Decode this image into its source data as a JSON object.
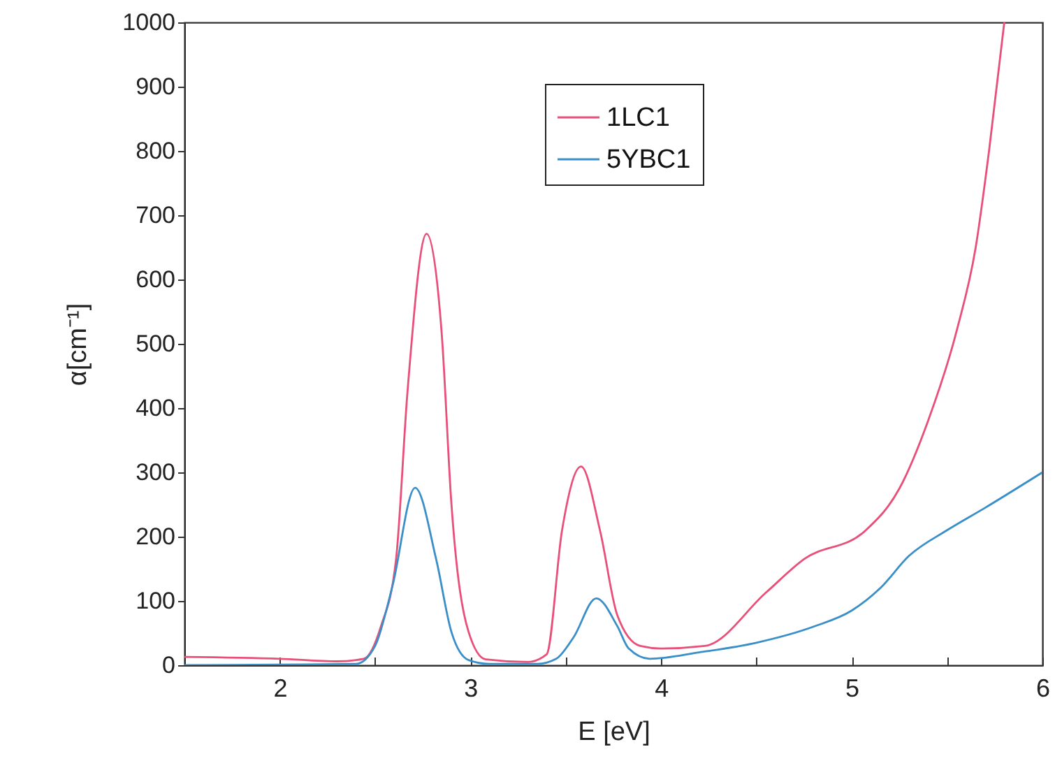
{
  "chart_data": {
    "type": "line",
    "xlabel": "E [eV]",
    "ylabel": "α[cm⁻¹]",
    "xlim": [
      1.5,
      6
    ],
    "xticks": [
      2,
      {
        "value": 2.5,
        "label": null
      },
      3,
      {
        "value": 3.5,
        "label": null
      },
      4,
      {
        "value": 4.5,
        "label": null
      },
      5,
      {
        "value": 5.5,
        "label": null
      },
      6
    ],
    "ylim": [
      0,
      1000
    ],
    "yticks": [
      0,
      100,
      200,
      300,
      400,
      500,
      600,
      700,
      800,
      900,
      1000
    ],
    "legend": "top right",
    "grid": false,
    "marker": "none",
    "line_style": "solid",
    "series": [
      {
        "name": "1LC1",
        "color": "#e8507a",
        "x": [
          1.5,
          2.0,
          2.3,
          2.44,
          2.53,
          2.61,
          2.67,
          2.77,
          2.85,
          2.9,
          2.99,
          3.08,
          3.3,
          3.4,
          3.48,
          3.58,
          3.68,
          3.77,
          3.89,
          4.0,
          4.23,
          4.55,
          4.75,
          5.07,
          5.25,
          5.4,
          5.55,
          5.65,
          5.72,
          5.8
        ],
        "values": [
          13,
          10,
          6,
          10,
          60,
          165,
          426,
          671,
          513,
          252,
          52,
          9,
          5,
          17,
          209,
          309,
          209,
          78,
          30,
          26,
          30,
          113,
          165,
          209,
          275,
          380,
          520,
          650,
          800,
          1000
        ]
      },
      {
        "name": "5YBC1",
        "color": "#3a8fc8",
        "x": [
          1.5,
          2.0,
          2.4,
          2.5,
          2.59,
          2.71,
          2.82,
          2.9,
          2.99,
          3.1,
          3.35,
          3.45,
          3.54,
          3.66,
          3.77,
          3.83,
          3.94,
          4.2,
          4.5,
          4.8,
          5.0,
          5.15,
          5.3,
          5.5,
          5.7,
          6.0
        ],
        "values": [
          0,
          1,
          2,
          30,
          122,
          276,
          165,
          52,
          8,
          2,
          2,
          10,
          43,
          104,
          61,
          26,
          10,
          20,
          35,
          60,
          85,
          120,
          170,
          210,
          245,
          300
        ]
      }
    ]
  }
}
